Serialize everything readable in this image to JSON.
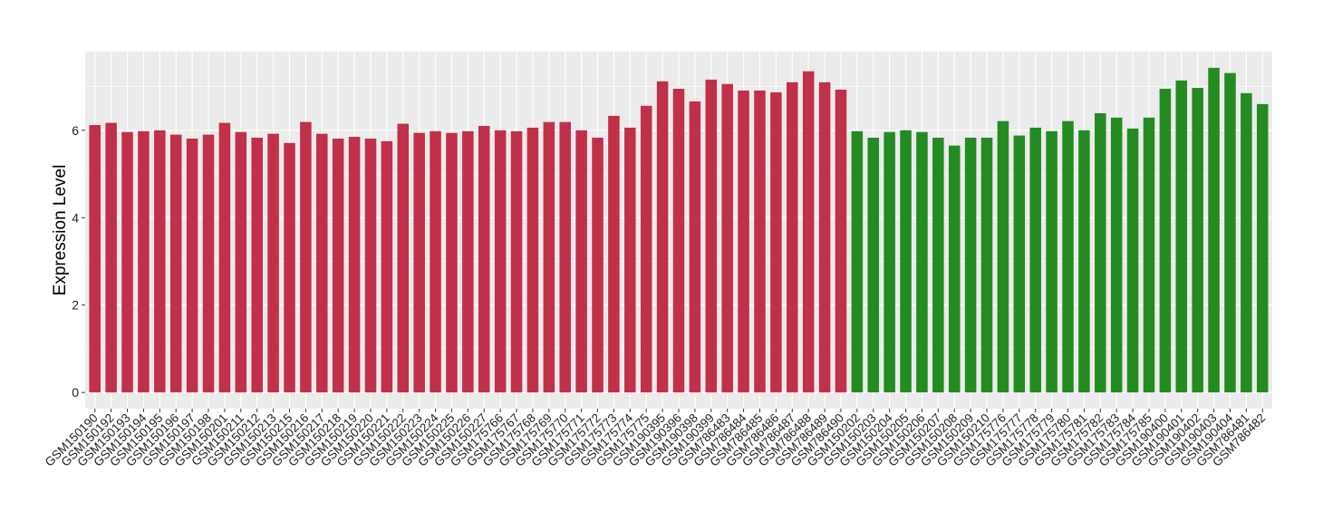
{
  "chart_data": {
    "type": "bar",
    "title": "",
    "xlabel": "",
    "ylabel": "Expression Level",
    "ylim": [
      -0.37,
      7.8
    ],
    "yticks": [
      0,
      2,
      4,
      6
    ],
    "grid": true,
    "legend": "none",
    "colors": {
      "group1": "#C1304A",
      "group2": "#238B22",
      "panel": "#EBEBEB",
      "grid": "#FFFFFF"
    },
    "categories": [
      "GSM150190",
      "GSM150192",
      "GSM150193",
      "GSM150194",
      "GSM150195",
      "GSM150196",
      "GSM150197",
      "GSM150198",
      "GSM150201",
      "GSM150211",
      "GSM150212",
      "GSM150213",
      "GSM150215",
      "GSM150216",
      "GSM150217",
      "GSM150218",
      "GSM150219",
      "GSM150220",
      "GSM150221",
      "GSM150222",
      "GSM150223",
      "GSM150224",
      "GSM150225",
      "GSM150226",
      "GSM150227",
      "GSM175766",
      "GSM175767",
      "GSM175768",
      "GSM175769",
      "GSM175770",
      "GSM175771",
      "GSM175772",
      "GSM175773",
      "GSM175774",
      "GSM175775",
      "GSM190395",
      "GSM190396",
      "GSM190398",
      "GSM190399",
      "GSM786483",
      "GSM786484",
      "GSM786485",
      "GSM786486",
      "GSM786487",
      "GSM786488",
      "GSM786489",
      "GSM786490",
      "GSM150202",
      "GSM150203",
      "GSM150204",
      "GSM150205",
      "GSM150206",
      "GSM150207",
      "GSM150208",
      "GSM150209",
      "GSM150210",
      "GSM175776",
      "GSM175777",
      "GSM175778",
      "GSM175779",
      "GSM175780",
      "GSM175781",
      "GSM175782",
      "GSM175783",
      "GSM175784",
      "GSM175785",
      "GSM190400",
      "GSM190401",
      "GSM190402",
      "GSM190403",
      "GSM190404",
      "GSM786481",
      "GSM786482"
    ],
    "values": [
      6.12,
      6.17,
      5.96,
      5.98,
      6.0,
      5.9,
      5.81,
      5.9,
      6.17,
      5.96,
      5.83,
      5.92,
      5.71,
      6.19,
      5.92,
      5.81,
      5.85,
      5.81,
      5.75,
      6.15,
      5.94,
      5.98,
      5.94,
      5.98,
      6.1,
      6.0,
      5.98,
      6.06,
      6.19,
      6.19,
      6.0,
      5.83,
      6.33,
      6.06,
      6.56,
      7.12,
      6.95,
      6.66,
      7.16,
      7.06,
      6.91,
      6.91,
      6.87,
      7.1,
      7.35,
      7.1,
      6.93,
      5.98,
      5.83,
      5.96,
      6.0,
      5.96,
      5.83,
      5.65,
      5.83,
      5.83,
      6.21,
      5.88,
      6.06,
      5.98,
      6.21,
      6.0,
      6.39,
      6.29,
      6.04,
      6.29,
      6.95,
      7.14,
      6.97,
      7.43,
      7.31,
      6.85,
      6.6
    ],
    "groups": [
      "group1",
      "group1",
      "group1",
      "group1",
      "group1",
      "group1",
      "group1",
      "group1",
      "group1",
      "group1",
      "group1",
      "group1",
      "group1",
      "group1",
      "group1",
      "group1",
      "group1",
      "group1",
      "group1",
      "group1",
      "group1",
      "group1",
      "group1",
      "group1",
      "group1",
      "group1",
      "group1",
      "group1",
      "group1",
      "group1",
      "group1",
      "group1",
      "group1",
      "group1",
      "group1",
      "group1",
      "group1",
      "group1",
      "group1",
      "group1",
      "group1",
      "group1",
      "group1",
      "group1",
      "group1",
      "group1",
      "group1",
      "group2",
      "group2",
      "group2",
      "group2",
      "group2",
      "group2",
      "group2",
      "group2",
      "group2",
      "group2",
      "group2",
      "group2",
      "group2",
      "group2",
      "group2",
      "group2",
      "group2",
      "group2",
      "group2",
      "group2",
      "group2",
      "group2",
      "group2",
      "group2",
      "group2",
      "group2"
    ]
  }
}
